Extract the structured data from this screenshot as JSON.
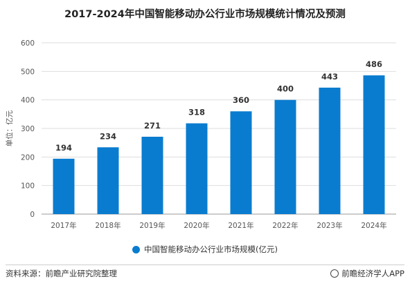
{
  "chart_data": {
    "type": "bar",
    "title": "2017-2024年中国智能移动办公行业市场规模统计情况及预测",
    "ylabel": "单位：亿元",
    "xlabel": "",
    "categories": [
      "2017年",
      "2018年",
      "2019年",
      "2020年",
      "2021年",
      "2022年",
      "2023年",
      "2024年"
    ],
    "series": [
      {
        "name": "中国智能移动办公行业市场规模(亿元)",
        "values": [
          194,
          234,
          271,
          318,
          360,
          400,
          443,
          486
        ],
        "color": "#0a7ccf"
      }
    ],
    "ylim": [
      0,
      600
    ],
    "yticks": [
      0,
      100,
      200,
      300,
      400,
      500,
      600
    ],
    "grid": true,
    "legend_position": "bottom",
    "data_labels": true
  },
  "footer": {
    "source": "资料来源：前瞻产业研究院整理",
    "brand": "前瞻经济学人APP",
    "brand_icon": "brand-logo-icon"
  }
}
